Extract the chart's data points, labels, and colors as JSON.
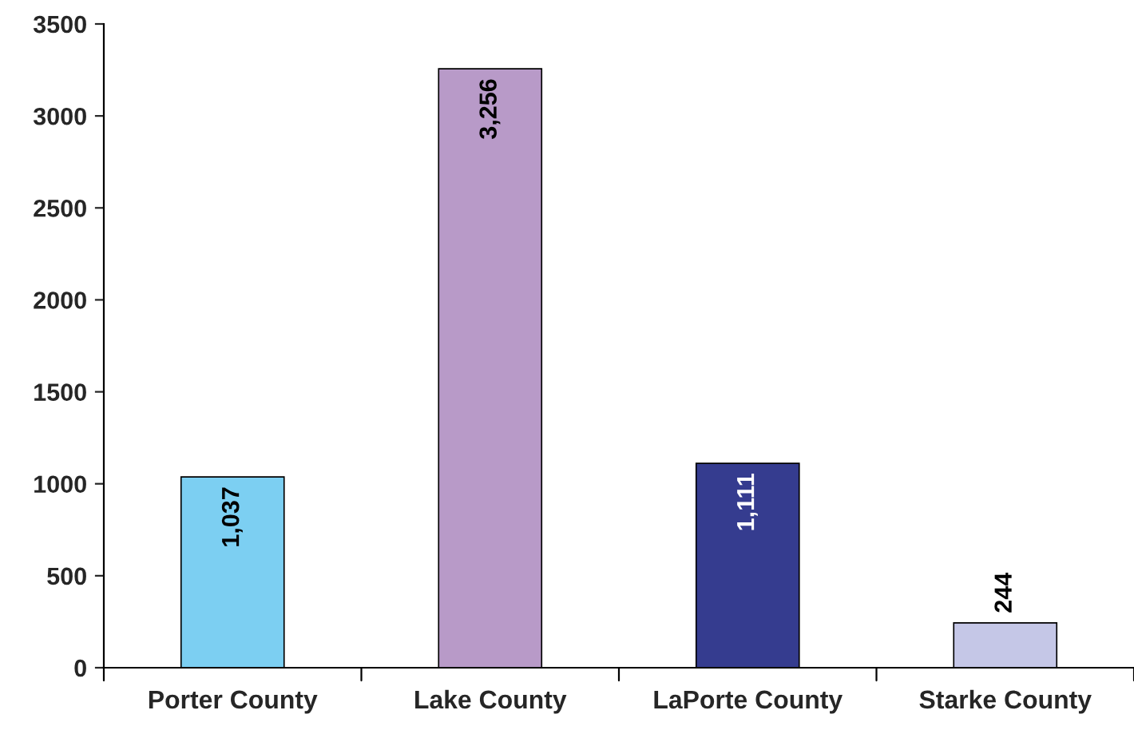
{
  "chart_data": {
    "type": "bar",
    "categories": [
      "Porter County",
      "Lake County",
      "LaPorte County",
      "Starke County"
    ],
    "values": [
      1037,
      3256,
      1111,
      244
    ],
    "value_labels": [
      "1,037",
      "3,256",
      "1,111",
      "244"
    ],
    "colors": [
      "#7ccff2",
      "#b89ac8",
      "#353c8f",
      "#c5c7e7"
    ],
    "ylim": [
      0,
      3500
    ],
    "yticks": [
      0,
      500,
      1000,
      1500,
      2000,
      2500,
      3000,
      3500
    ],
    "grid": false,
    "legend": false
  }
}
